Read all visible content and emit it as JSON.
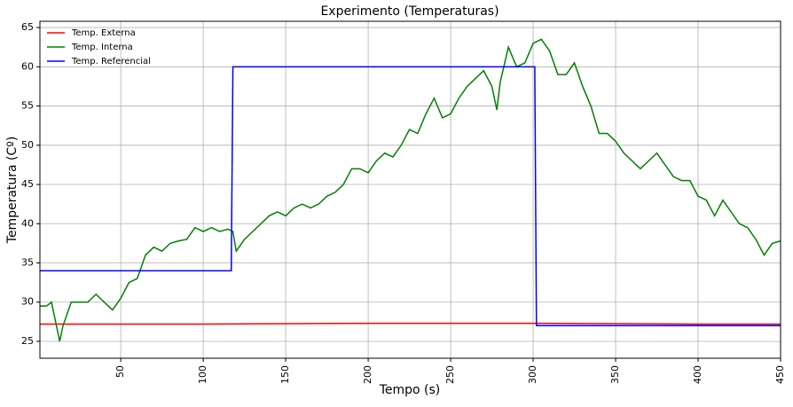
{
  "chart_data": {
    "type": "line",
    "title": "Experimento (Temperaturas)",
    "x_label": "Tempo (s)",
    "y_label": "Temperatura (Cº)",
    "xlim": [
      1,
      450
    ],
    "ylim": [
      22.85,
      65.8
    ],
    "xticks": [
      50,
      100,
      150,
      200,
      250,
      300,
      350,
      400,
      450
    ],
    "yticks": [
      25,
      30,
      35,
      40,
      45,
      50,
      55,
      60,
      65
    ],
    "grid": true,
    "legend": "upper-left",
    "series": [
      {
        "name": "Temp. Externa",
        "color": "#ff0000",
        "x": [
          1,
          100,
          200,
          300,
          400,
          450
        ],
        "values": [
          27.2,
          27.2,
          27.3,
          27.3,
          27.2,
          27.2
        ]
      },
      {
        "name": "Temp. Interna",
        "color": "#008000",
        "x": [
          1,
          5,
          8,
          10,
          13,
          15,
          20,
          25,
          30,
          35,
          40,
          45,
          50,
          55,
          60,
          65,
          70,
          75,
          80,
          85,
          90,
          95,
          100,
          105,
          110,
          115,
          118,
          120,
          125,
          130,
          135,
          140,
          145,
          150,
          155,
          160,
          165,
          170,
          175,
          180,
          185,
          190,
          195,
          200,
          205,
          210,
          215,
          220,
          225,
          230,
          235,
          240,
          245,
          250,
          255,
          260,
          265,
          270,
          275,
          278,
          280,
          285,
          290,
          295,
          300,
          305,
          310,
          315,
          320,
          325,
          330,
          335,
          340,
          345,
          350,
          355,
          360,
          365,
          370,
          375,
          380,
          385,
          390,
          395,
          400,
          405,
          410,
          415,
          420,
          425,
          430,
          435,
          440,
          445,
          450
        ],
        "values": [
          29.5,
          29.5,
          30,
          28,
          25,
          27,
          30,
          30,
          30,
          31,
          30,
          29,
          30.5,
          32.5,
          33,
          36,
          37,
          36.5,
          37.5,
          37.8,
          38,
          39.5,
          39,
          39.5,
          39,
          39.3,
          39,
          36.5,
          38,
          39,
          40,
          41,
          41.5,
          41,
          42,
          42.5,
          42,
          42.5,
          43.5,
          44,
          45,
          47,
          47,
          46.5,
          48,
          49,
          48.5,
          50,
          52,
          51.5,
          54,
          56,
          53.5,
          54,
          56,
          57.5,
          58.5,
          59.5,
          57.5,
          54.5,
          58,
          62.5,
          60,
          60.5,
          63,
          63.5,
          62,
          59,
          59,
          60.5,
          57.5,
          55,
          51.5,
          51.5,
          50.5,
          49,
          48,
          47,
          48,
          49,
          47.5,
          46,
          45.5,
          45.5,
          43.5,
          43,
          41,
          43,
          41.5,
          40,
          39.5,
          38,
          36,
          37.5,
          37.8
        ]
      },
      {
        "name": "Temp. Referencial",
        "color": "#0000ff",
        "x": [
          1,
          117,
          118,
          301,
          302,
          450
        ],
        "values": [
          34,
          34,
          60,
          60,
          27,
          27
        ]
      }
    ]
  }
}
